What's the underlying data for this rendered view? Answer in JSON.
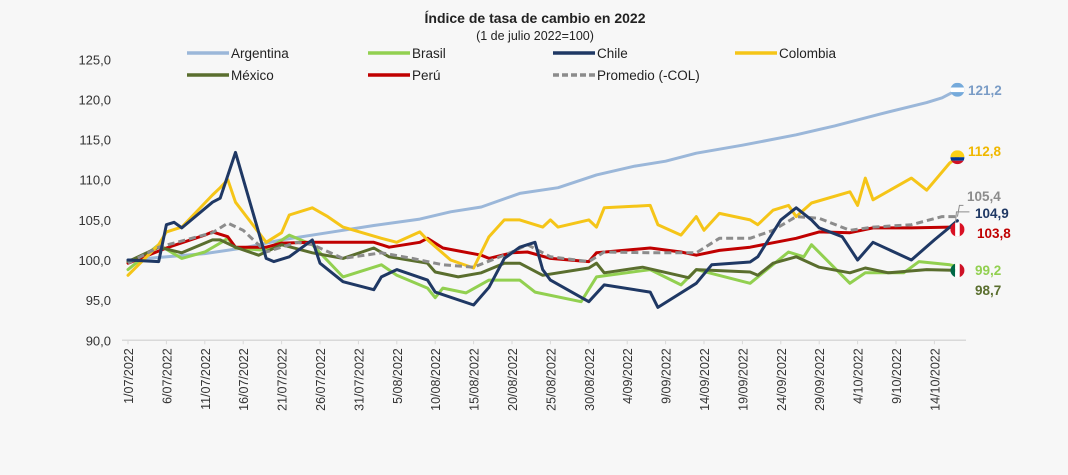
{
  "chart_data": {
    "type": "line",
    "title": "Índice de tasa de cambio en 2022",
    "subtitle": "(1 de julio 2022=100)",
    "ylim": [
      90,
      125
    ],
    "yticks": [
      "125,0",
      "120,0",
      "115,0",
      "110,0",
      "105,0",
      "100,0",
      "95,0",
      "90,0"
    ],
    "ytick_values": [
      125,
      120,
      115,
      110,
      105,
      100,
      95,
      90
    ],
    "xticks": [
      "1/07/2022",
      "6/07/2022",
      "11/07/2022",
      "16/07/2022",
      "21/07/2022",
      "26/07/2022",
      "31/07/2022",
      "5/08/2022",
      "10/08/2022",
      "15/08/2022",
      "20/08/2022",
      "25/08/2022",
      "30/08/2022",
      "4/09/2022",
      "9/09/2022",
      "14/09/2022",
      "19/09/2022",
      "24/09/2022",
      "29/09/2022",
      "4/10/2022",
      "9/10/2022",
      "14/10/2022"
    ],
    "x_start": "2022-07-01",
    "grid": false,
    "legend_position": "top",
    "series": [
      {
        "name": "Argentina",
        "color": "#9bb7d9",
        "dashed": false,
        "end_label": "121,2",
        "flag": "argentina-flag-icon",
        "points": [
          [
            "2022-07-01",
            100
          ],
          [
            "2022-07-11",
            100.8
          ],
          [
            "2022-07-16",
            101.5
          ],
          [
            "2022-07-21",
            102.5
          ],
          [
            "2022-07-27",
            103.4
          ],
          [
            "2022-08-02",
            104.3
          ],
          [
            "2022-08-08",
            105.1
          ],
          [
            "2022-08-12",
            106.0
          ],
          [
            "2022-08-16",
            106.6
          ],
          [
            "2022-08-21",
            108.3
          ],
          [
            "2022-08-26",
            109.0
          ],
          [
            "2022-08-31",
            110.6
          ],
          [
            "2022-09-05",
            111.7
          ],
          [
            "2022-09-09",
            112.3
          ],
          [
            "2022-09-13",
            113.3
          ],
          [
            "2022-09-19",
            114.3
          ],
          [
            "2022-09-26",
            115.6
          ],
          [
            "2022-10-01",
            116.7
          ],
          [
            "2022-10-07",
            118.2
          ],
          [
            "2022-10-13",
            119.6
          ],
          [
            "2022-10-15",
            120.2
          ],
          [
            "2022-10-17",
            121.2
          ]
        ]
      },
      {
        "name": "Brasil",
        "color": "#92d050",
        "dashed": false,
        "end_label": "99,2",
        "flag": "",
        "points": [
          [
            "2022-07-01",
            98.8
          ],
          [
            "2022-07-05",
            101.9
          ],
          [
            "2022-07-08",
            100.2
          ],
          [
            "2022-07-11",
            101
          ],
          [
            "2022-07-13",
            102.1
          ],
          [
            "2022-07-14",
            102.7
          ],
          [
            "2022-07-15",
            101.5
          ],
          [
            "2022-07-19",
            101.2
          ],
          [
            "2022-07-22",
            103.1
          ],
          [
            "2022-07-25",
            101.9
          ],
          [
            "2022-07-29",
            97.9
          ],
          [
            "2022-08-03",
            99.4
          ],
          [
            "2022-08-05",
            98.1
          ],
          [
            "2022-08-09",
            96.5
          ],
          [
            "2022-08-10",
            95.3
          ],
          [
            "2022-08-11",
            96.5
          ],
          [
            "2022-08-14",
            95.9
          ],
          [
            "2022-08-17",
            97.5
          ],
          [
            "2022-08-21",
            97.5
          ],
          [
            "2022-08-23",
            96
          ],
          [
            "2022-08-29",
            94.8
          ],
          [
            "2022-08-31",
            97.9
          ],
          [
            "2022-09-07",
            98.8
          ],
          [
            "2022-09-11",
            96.9
          ],
          [
            "2022-09-13",
            98.8
          ],
          [
            "2022-09-20",
            97.1
          ],
          [
            "2022-09-25",
            101
          ],
          [
            "2022-09-27",
            100.4
          ],
          [
            "2022-09-28",
            101.9
          ],
          [
            "2022-10-03",
            97.1
          ],
          [
            "2022-10-05",
            98.4
          ],
          [
            "2022-10-10",
            98.4
          ],
          [
            "2022-10-12",
            99.8
          ],
          [
            "2022-10-16",
            99.4
          ],
          [
            "2022-10-17",
            99.2
          ]
        ]
      },
      {
        "name": "Chile",
        "color": "#1f3864",
        "dashed": false,
        "end_label": "104,9",
        "flag": "",
        "points": [
          [
            "2022-07-01",
            100
          ],
          [
            "2022-07-05",
            99.8
          ],
          [
            "2022-07-06",
            104.4
          ],
          [
            "2022-07-07",
            104.7
          ],
          [
            "2022-07-08",
            104
          ],
          [
            "2022-07-12",
            107.2
          ],
          [
            "2022-07-13",
            107.7
          ],
          [
            "2022-07-15",
            113.4
          ],
          [
            "2022-07-19",
            100.2
          ],
          [
            "2022-07-20",
            99.8
          ],
          [
            "2022-07-22",
            100.4
          ],
          [
            "2022-07-25",
            102.5
          ],
          [
            "2022-07-26",
            99.6
          ],
          [
            "2022-07-29",
            97.3
          ],
          [
            "2022-08-02",
            96.3
          ],
          [
            "2022-08-03",
            97.9
          ],
          [
            "2022-08-05",
            98.8
          ],
          [
            "2022-08-09",
            97.5
          ],
          [
            "2022-08-10",
            96
          ],
          [
            "2022-08-15",
            94.4
          ],
          [
            "2022-08-17",
            96.6
          ],
          [
            "2022-08-19",
            100.2
          ],
          [
            "2022-08-21",
            101.6
          ],
          [
            "2022-08-23",
            102.2
          ],
          [
            "2022-08-24",
            98.8
          ],
          [
            "2022-08-25",
            97.5
          ],
          [
            "2022-08-30",
            94.8
          ],
          [
            "2022-09-01",
            96.9
          ],
          [
            "2022-09-07",
            96.0
          ],
          [
            "2022-09-08",
            94.1
          ],
          [
            "2022-09-13",
            97.1
          ],
          [
            "2022-09-15",
            99.4
          ],
          [
            "2022-09-20",
            99.75
          ],
          [
            "2022-09-21",
            100.4
          ],
          [
            "2022-09-24",
            105
          ],
          [
            "2022-09-26",
            106.5
          ],
          [
            "2022-09-28",
            105
          ],
          [
            "2022-09-29",
            104
          ],
          [
            "2022-10-02",
            102.9
          ],
          [
            "2022-10-04",
            100
          ],
          [
            "2022-10-06",
            102.2
          ],
          [
            "2022-10-11",
            100
          ],
          [
            "2022-10-14",
            102.5
          ],
          [
            "2022-10-16",
            104.1
          ],
          [
            "2022-10-17",
            104.9
          ]
        ]
      },
      {
        "name": "Colombia",
        "color": "#f5c518",
        "dashed": false,
        "end_label": "112,8",
        "flag": "colombia-flag-icon",
        "points": [
          [
            "2022-07-01",
            98.1
          ],
          [
            "2022-07-05",
            101.9
          ],
          [
            "2022-07-06",
            103.5
          ],
          [
            "2022-07-08",
            104.1
          ],
          [
            "2022-07-12",
            108.1
          ],
          [
            "2022-07-13",
            109
          ],
          [
            "2022-07-14",
            110
          ],
          [
            "2022-07-15",
            107.2
          ],
          [
            "2022-07-19",
            102.2
          ],
          [
            "2022-07-21",
            103.4
          ],
          [
            "2022-07-22",
            105.6
          ],
          [
            "2022-07-25",
            106.5
          ],
          [
            "2022-07-27",
            105.4
          ],
          [
            "2022-07-29",
            104.1
          ],
          [
            "2022-08-03",
            102.7
          ],
          [
            "2022-08-05",
            102.2
          ],
          [
            "2022-08-08",
            103.5
          ],
          [
            "2022-08-09",
            102.5
          ],
          [
            "2022-08-12",
            100
          ],
          [
            "2022-08-15",
            99
          ],
          [
            "2022-08-17",
            102.9
          ],
          [
            "2022-08-19",
            105
          ],
          [
            "2022-08-21",
            105
          ],
          [
            "2022-08-24",
            104.1
          ],
          [
            "2022-08-25",
            105
          ],
          [
            "2022-08-26",
            104.1
          ],
          [
            "2022-08-30",
            105
          ],
          [
            "2022-08-31",
            104.1
          ],
          [
            "2022-09-01",
            106.5
          ],
          [
            "2022-09-07",
            106.8
          ],
          [
            "2022-09-08",
            104.4
          ],
          [
            "2022-09-11",
            103.1
          ],
          [
            "2022-09-13",
            105.4
          ],
          [
            "2022-09-14",
            103.7
          ],
          [
            "2022-09-16",
            105.8
          ],
          [
            "2022-09-20",
            105
          ],
          [
            "2022-09-21",
            104.4
          ],
          [
            "2022-09-23",
            106.2
          ],
          [
            "2022-09-25",
            106.8
          ],
          [
            "2022-09-26",
            105.4
          ],
          [
            "2022-09-28",
            107.1
          ],
          [
            "2022-10-03",
            108.5
          ],
          [
            "2022-10-04",
            106.8
          ],
          [
            "2022-10-05",
            110.2
          ],
          [
            "2022-10-06",
            107.5
          ],
          [
            "2022-10-11",
            110.2
          ],
          [
            "2022-10-13",
            108.7
          ],
          [
            "2022-10-16",
            112.1
          ],
          [
            "2022-10-17",
            112.8
          ]
        ]
      },
      {
        "name": "México",
        "color": "#5a6e2e",
        "dashed": false,
        "end_label": "98,7",
        "flag": "mexico-flag-icon",
        "points": [
          [
            "2022-07-01",
            99.8
          ],
          [
            "2022-07-05",
            101.6
          ],
          [
            "2022-07-08",
            100.9
          ],
          [
            "2022-07-12",
            102.5
          ],
          [
            "2022-07-13",
            102.5
          ],
          [
            "2022-07-15",
            101.6
          ],
          [
            "2022-07-18",
            100.6
          ],
          [
            "2022-07-21",
            101.9
          ],
          [
            "2022-07-25",
            100.9
          ],
          [
            "2022-07-29",
            100.2
          ],
          [
            "2022-08-02",
            101.5
          ],
          [
            "2022-08-04",
            100.4
          ],
          [
            "2022-08-09",
            99.6
          ],
          [
            "2022-08-10",
            98.5
          ],
          [
            "2022-08-13",
            97.9
          ],
          [
            "2022-08-16",
            98.4
          ],
          [
            "2022-08-19",
            99.6
          ],
          [
            "2022-08-21",
            99.6
          ],
          [
            "2022-08-24",
            98.1
          ],
          [
            "2022-08-30",
            99
          ],
          [
            "2022-08-31",
            99.6
          ],
          [
            "2022-09-01",
            98.4
          ],
          [
            "2022-09-06",
            99.1
          ],
          [
            "2022-09-12",
            97.8
          ],
          [
            "2022-09-13",
            98.8
          ],
          [
            "2022-09-20",
            98.5
          ],
          [
            "2022-09-21",
            98.1
          ],
          [
            "2022-09-23",
            99.6
          ],
          [
            "2022-09-26",
            100.4
          ],
          [
            "2022-09-29",
            99.1
          ],
          [
            "2022-10-03",
            98.4
          ],
          [
            "2022-10-05",
            99
          ],
          [
            "2022-10-08",
            98.4
          ],
          [
            "2022-10-13",
            98.8
          ],
          [
            "2022-10-17",
            98.7
          ]
        ]
      },
      {
        "name": "Perú",
        "color": "#c00000",
        "dashed": false,
        "end_label": "103,8",
        "flag": "peru-flag-icon",
        "points": [
          [
            "2022-07-01",
            99.6
          ],
          [
            "2022-07-06",
            101.5
          ],
          [
            "2022-07-11",
            103.1
          ],
          [
            "2022-07-12",
            103.5
          ],
          [
            "2022-07-14",
            102.9
          ],
          [
            "2022-07-15",
            101.6
          ],
          [
            "2022-07-19",
            101.6
          ],
          [
            "2022-07-21",
            102.1
          ],
          [
            "2022-07-25",
            102.2
          ],
          [
            "2022-08-02",
            102.2
          ],
          [
            "2022-08-04",
            101.6
          ],
          [
            "2022-08-08",
            102.2
          ],
          [
            "2022-08-09",
            102.7
          ],
          [
            "2022-08-11",
            101.5
          ],
          [
            "2022-08-16",
            100.6
          ],
          [
            "2022-08-17",
            100.2
          ],
          [
            "2022-08-20",
            100.9
          ],
          [
            "2022-08-22",
            101
          ],
          [
            "2022-08-25",
            100.2
          ],
          [
            "2022-08-30",
            99.8
          ],
          [
            "2022-08-31",
            100.9
          ],
          [
            "2022-09-07",
            101.5
          ],
          [
            "2022-09-11",
            101
          ],
          [
            "2022-09-13",
            100.6
          ],
          [
            "2022-09-16",
            101.2
          ],
          [
            "2022-09-20",
            101.6
          ],
          [
            "2022-09-26",
            102.7
          ],
          [
            "2022-09-29",
            103.5
          ],
          [
            "2022-10-03",
            103.4
          ],
          [
            "2022-10-06",
            104
          ],
          [
            "2022-10-11",
            104
          ],
          [
            "2022-10-16",
            104.1
          ],
          [
            "2022-10-17",
            103.8
          ]
        ]
      },
      {
        "name": "Promedio (-COL)",
        "color": "#8c8c8c",
        "dashed": true,
        "end_label": "105,4",
        "flag": "",
        "points": [
          [
            "2022-07-01",
            99.6
          ],
          [
            "2022-07-05",
            101.6
          ],
          [
            "2022-07-12",
            103.4
          ],
          [
            "2022-07-14",
            104.6
          ],
          [
            "2022-07-16",
            103.7
          ],
          [
            "2022-07-19",
            101
          ],
          [
            "2022-07-23",
            102.2
          ],
          [
            "2022-07-25",
            101.9
          ],
          [
            "2022-07-29",
            100.2
          ],
          [
            "2022-08-03",
            100.9
          ],
          [
            "2022-08-07",
            100.2
          ],
          [
            "2022-08-11",
            99.4
          ],
          [
            "2022-08-15",
            99.1
          ],
          [
            "2022-08-20",
            101
          ],
          [
            "2022-08-22",
            101.9
          ],
          [
            "2022-08-25",
            100.4
          ],
          [
            "2022-08-30",
            99.8
          ],
          [
            "2022-09-01",
            101
          ],
          [
            "2022-09-07",
            100.9
          ],
          [
            "2022-09-13",
            100.9
          ],
          [
            "2022-09-16",
            102.7
          ],
          [
            "2022-09-20",
            102.7
          ],
          [
            "2022-09-23",
            103.7
          ],
          [
            "2022-09-26",
            105.4
          ],
          [
            "2022-09-29",
            105.2
          ],
          [
            "2022-10-03",
            103.7
          ],
          [
            "2022-10-06",
            104.1
          ],
          [
            "2022-10-11",
            104.4
          ],
          [
            "2022-10-15",
            105.4
          ],
          [
            "2022-10-17",
            105.4
          ]
        ]
      }
    ]
  }
}
